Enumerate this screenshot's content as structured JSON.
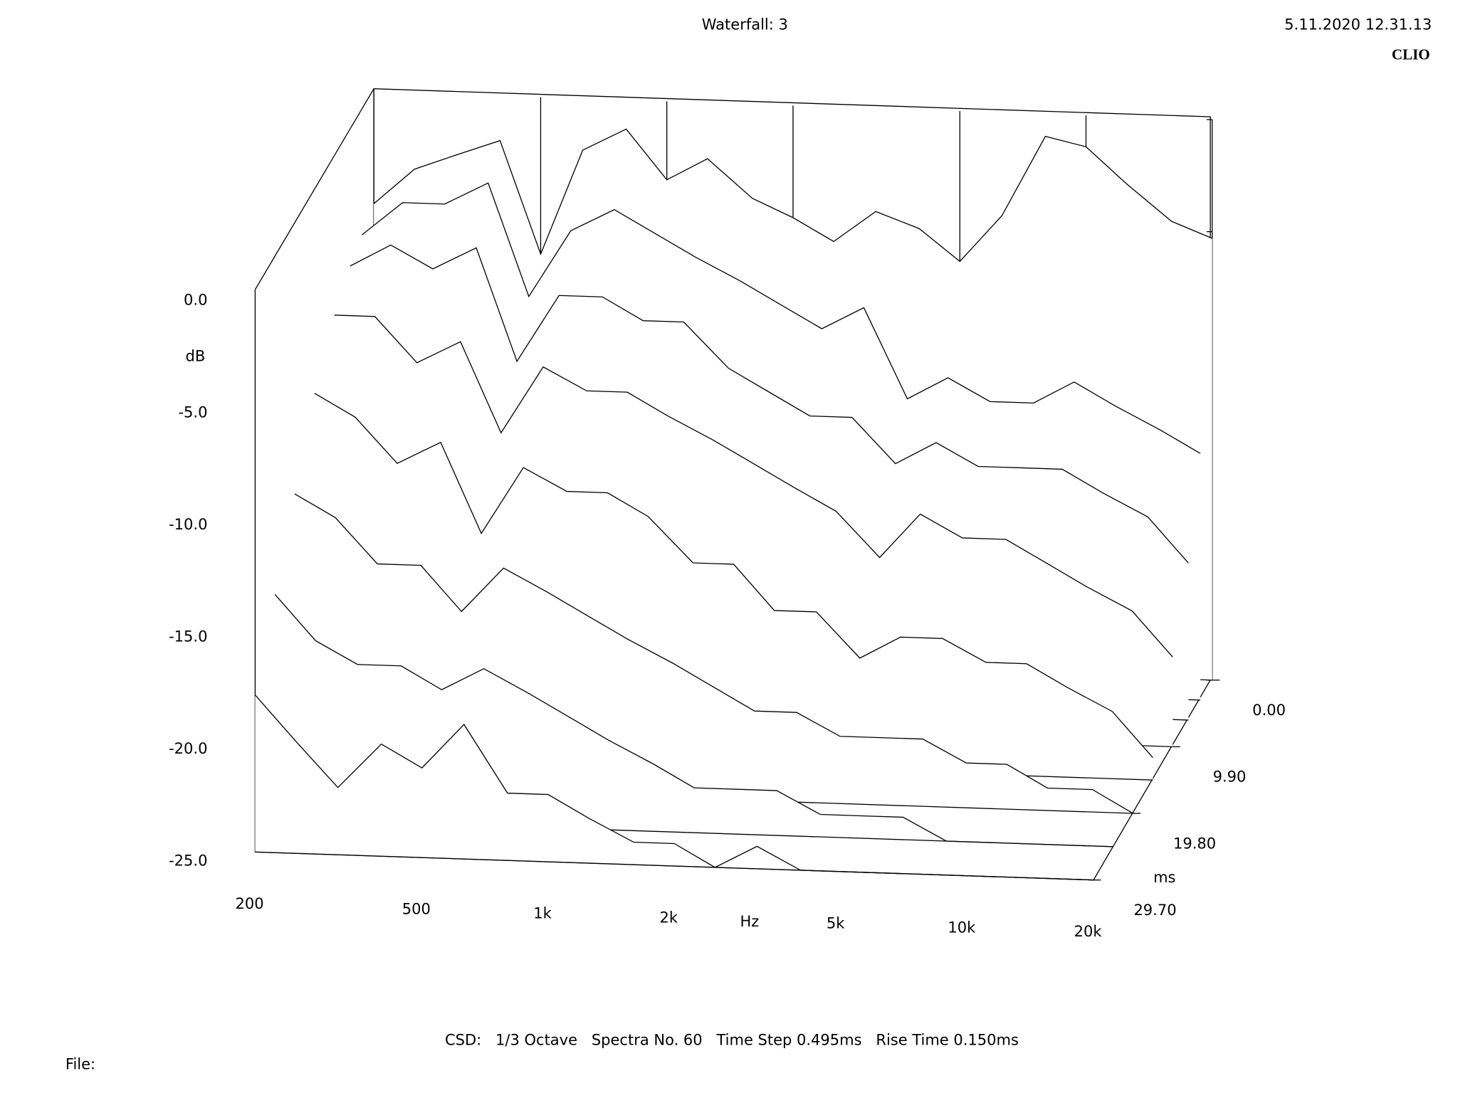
{
  "chart_data": {
    "type": "waterfall",
    "title": "Waterfall: 3",
    "timestamp": "5.11.2020 12.31.13",
    "brand": "CLIO",
    "x_label": "Hz",
    "y_label": "dB",
    "z_label": "ms",
    "log_x": true,
    "xlim": [
      200,
      20000
    ],
    "xticks": [
      200,
      500,
      {
        "value": 1000,
        "label": "1k"
      },
      {
        "value": 2000,
        "label": "2k"
      },
      {
        "value": 5000,
        "label": "5k"
      },
      {
        "value": 10000,
        "label": "10k"
      },
      {
        "value": 20000,
        "label": "20k"
      }
    ],
    "ylim": [
      -25,
      0
    ],
    "yticks": [
      {
        "value": 0,
        "label": "0.0"
      },
      {
        "value": -5,
        "label": "-5.0"
      },
      {
        "value": -10,
        "label": "-10.0"
      },
      {
        "value": -15,
        "label": "-15.0"
      },
      {
        "value": -20,
        "label": "-20.0"
      },
      {
        "value": -25,
        "label": "-25.0"
      }
    ],
    "zlim": [
      0,
      29.7
    ],
    "zticks": [
      {
        "value": 0,
        "label": "0.00"
      },
      {
        "value": 9.9,
        "label": "9.90"
      },
      {
        "value": 19.8,
        "label": "19.80"
      },
      {
        "value": 29.7,
        "label": "29.70"
      }
    ],
    "color": "#000000",
    "x": [
      200,
      250,
      315,
      400,
      500,
      630,
      800,
      1000,
      1250,
      1600,
      2000,
      2500,
      3150,
      4000,
      5000,
      6300,
      8000,
      10000,
      12500,
      16000,
      20000
    ],
    "series": [
      {
        "time": 0,
        "values": [
          -5,
          -3.4,
          -2.7,
          -2,
          -7,
          -2.3,
          -1.3,
          -3.5,
          -2.5,
          -4.2,
          -5,
          -6,
          -4.6,
          -5.3,
          -6.7,
          -4.6,
          -1,
          -1.4,
          -3,
          -4.6,
          -5.3
        ]
      },
      {
        "time": 2.97,
        "values": [
          -5.5,
          -4,
          -4,
          -3,
          -8,
          -5,
          -4,
          -5,
          -6,
          -7,
          -8,
          -9,
          -8,
          -12,
          -11,
          -12,
          -12,
          -11,
          -12,
          -13,
          -14
        ]
      },
      {
        "time": 5.94,
        "values": [
          -6,
          -5,
          -6,
          -5,
          -10,
          -7,
          -7,
          -8,
          -8,
          -10,
          -11,
          -12,
          -12,
          -14,
          -13,
          -14,
          -14,
          -14,
          -15,
          -16,
          -18
        ]
      },
      {
        "time": 9.9,
        "values": [
          -7,
          -7,
          -9,
          -8,
          -12,
          -9,
          -10,
          -10,
          -11,
          -12,
          -13,
          -14,
          -15,
          -17,
          -15,
          -16,
          -16,
          -17,
          -18,
          -19,
          -21
        ]
      },
      {
        "time": 14.85,
        "values": [
          -9,
          -10,
          -12,
          -11,
          -15,
          -12,
          -13,
          -13,
          -14,
          -16,
          -16,
          -18,
          -18,
          -20,
          -19,
          -19,
          -20,
          -20,
          -21,
          -22,
          -24
        ]
      },
      {
        "time": 19.8,
        "values": [
          -12,
          -13,
          -15,
          -15,
          -17,
          -15,
          -16,
          -17,
          -18,
          -19,
          -20,
          -21,
          -21,
          -22,
          -22,
          -22,
          -23,
          -23,
          -24,
          -24,
          -25
        ]
      },
      {
        "time": 24.75,
        "values": [
          -15,
          -17,
          -18,
          -18,
          -19,
          -18,
          -19,
          -20,
          -21,
          -22,
          -23,
          -23,
          -23,
          -24,
          -24,
          -24,
          -25,
          -25,
          -25,
          -25,
          -25
        ]
      },
      {
        "time": 29.7,
        "values": [
          -18,
          -20,
          -22,
          -20,
          -21,
          -19,
          -22,
          -22,
          -23,
          -24,
          -24,
          -25,
          -24,
          -25,
          -25,
          -25,
          -25,
          -25,
          -25,
          -25,
          -25
        ]
      }
    ],
    "footer": {
      "label": "CSD:",
      "items": [
        "1/3 Octave",
        "Spectra No. 60",
        "Time Step 0.495ms",
        "Rise Time 0.150ms"
      ]
    },
    "file_label": "File:"
  }
}
